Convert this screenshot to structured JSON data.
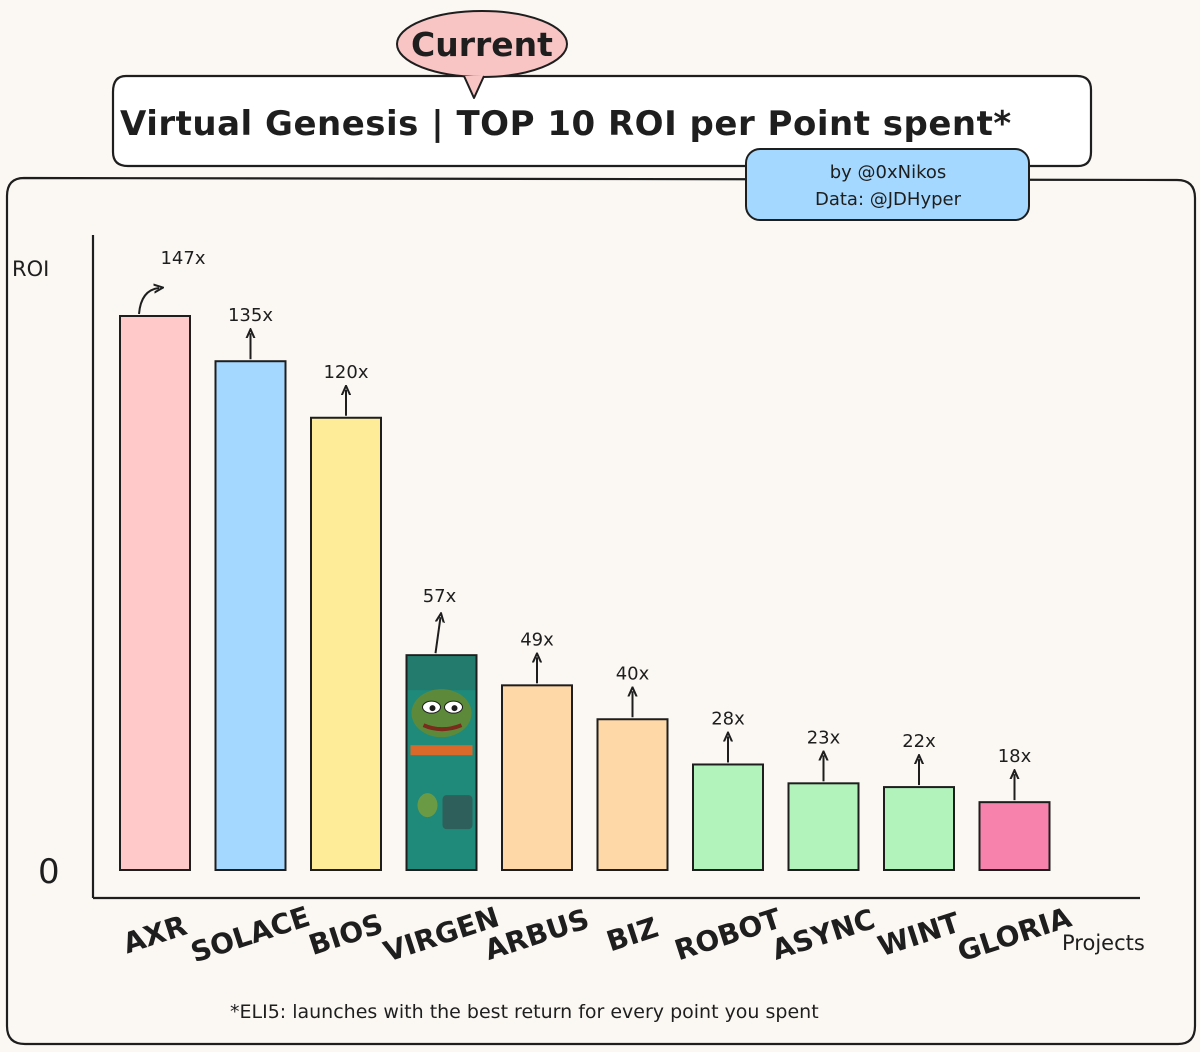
{
  "header": {
    "title": "Virtual Genesis | TOP 10 ROI per Point spent*",
    "badge": "Current",
    "credit_line1": "by @0xNikos",
    "credit_line2": "Data: @JDHyper"
  },
  "footnote": "*ELI5: launches with the best return for every point you spent",
  "colors": {
    "background": "#fbf8f3",
    "title_badge": "#f8c4c4",
    "credit_badge": "#a5d8ff"
  },
  "chart_data": {
    "type": "bar",
    "title": "Virtual Genesis | TOP 10 ROI per Point spent*",
    "xlabel": "Projects",
    "ylabel": "ROI",
    "y_tick_labels": [
      "0"
    ],
    "ylim": [
      0,
      160
    ],
    "grid": false,
    "categories": [
      "AXR",
      "SOLACE",
      "BIOS",
      "VIRGEN",
      "ARBUS",
      "BIZ",
      "ROBOT",
      "ASYNC",
      "WINT",
      "GLORIA"
    ],
    "values": [
      147,
      135,
      120,
      57,
      49,
      40,
      28,
      23,
      22,
      18
    ],
    "value_labels": [
      "147x",
      "135x",
      "120x",
      "57x",
      "49x",
      "40x",
      "28x",
      "23x",
      "22x",
      "18x"
    ],
    "bar_colors": [
      "#ffc9c9",
      "#a5d8ff",
      "#ffec99",
      "#1f8a7a",
      "#ffd8a8",
      "#ffd8a8",
      "#b2f2bb",
      "#b2f2bb",
      "#b2f2bb",
      "#f783ac"
    ],
    "image_bar": "VIRGEN"
  }
}
